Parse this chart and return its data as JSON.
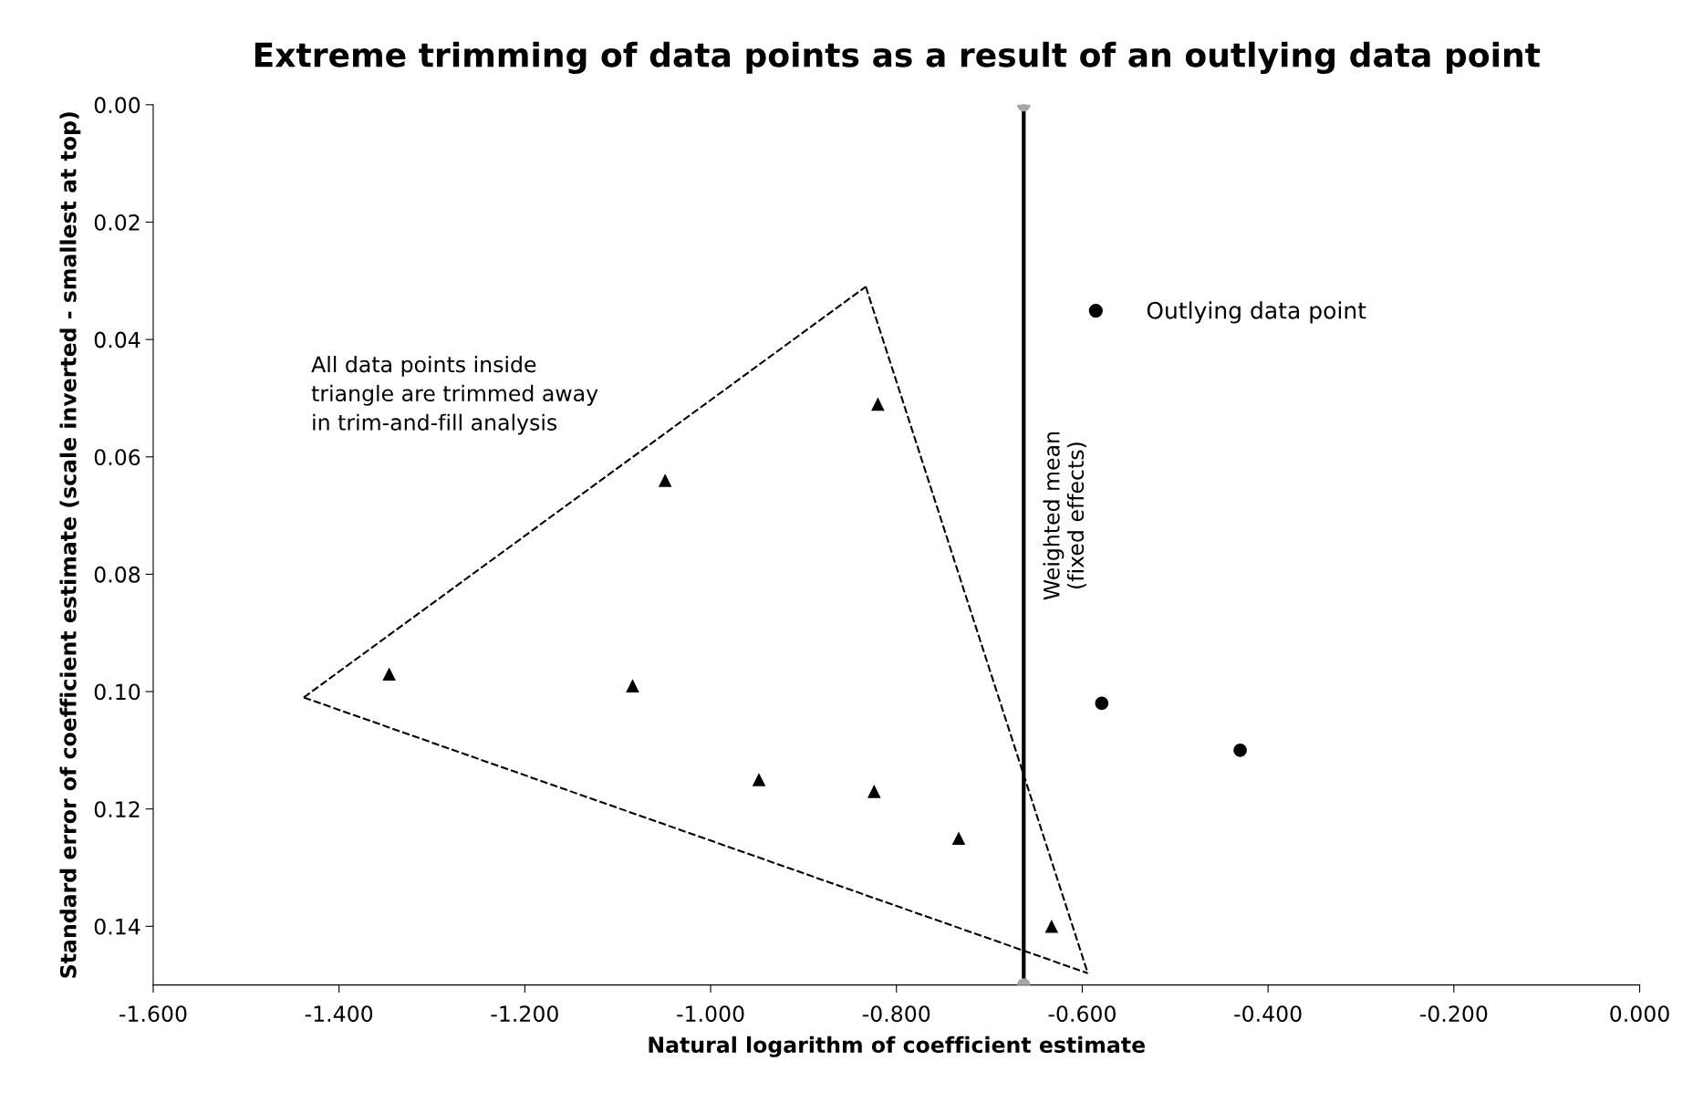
{
  "chart_data": {
    "type": "scatter",
    "title": "Extreme trimming of data points as a result of an outlying data point",
    "xlabel": "Natural logarithm of coefficient estimate",
    "ylabel": "Standard error of coefficient estimate (scale inverted - smallest at top)",
    "xlim": [
      -1.6,
      0.0
    ],
    "xticks": [
      {
        "value": -1.6,
        "label": "-1.600"
      },
      {
        "value": -1.4,
        "label": "-1.400"
      },
      {
        "value": -1.2,
        "label": "-1.200"
      },
      {
        "value": -1.0,
        "label": "-1.000"
      },
      {
        "value": -0.8,
        "label": "-0.800"
      },
      {
        "value": -0.6,
        "label": "-0.600"
      },
      {
        "value": -0.4,
        "label": "-0.400"
      },
      {
        "value": -0.2,
        "label": "-0.200"
      },
      {
        "value": 0.0,
        "label": "0.000"
      }
    ],
    "ylim": [
      0.15,
      0.0
    ],
    "yticks": [
      {
        "value": 0.0,
        "label": "0.00"
      },
      {
        "value": 0.02,
        "label": "0.02"
      },
      {
        "value": 0.04,
        "label": "0.04"
      },
      {
        "value": 0.06,
        "label": "0.06"
      },
      {
        "value": 0.08,
        "label": "0.08"
      },
      {
        "value": 0.1,
        "label": "0.10"
      },
      {
        "value": 0.12,
        "label": "0.12"
      },
      {
        "value": 0.14,
        "label": "0.14"
      }
    ],
    "grid": false,
    "legend": "top right",
    "series": [
      {
        "type": "scatter",
        "marker": "triangle",
        "color": "#000000",
        "x": [
          -1.346,
          -1.084,
          -1.049,
          -0.82,
          -0.948,
          -0.824,
          -0.733,
          -0.633
        ],
        "values": [
          0.097,
          0.099,
          0.064,
          0.051,
          0.115,
          0.117,
          0.125,
          0.14
        ]
      },
      {
        "type": "scatter",
        "marker": "circle",
        "color": "#000000",
        "name": "Outlying data point",
        "x": [
          -0.579,
          -0.43
        ],
        "values": [
          0.102,
          0.11
        ]
      },
      {
        "type": "line",
        "marker": "none",
        "line_style": "dashed",
        "color": "#000000",
        "x": [
          -1.438,
          -0.833
        ],
        "values": [
          0.101,
          0.031
        ]
      },
      {
        "type": "line",
        "marker": "none",
        "line_style": "dashed",
        "color": "#000000",
        "x": [
          -0.833,
          -0.594
        ],
        "values": [
          0.031,
          0.148
        ]
      },
      {
        "type": "line",
        "marker": "none",
        "line_style": "dashed",
        "color": "#000000",
        "x": [
          -1.438,
          -0.594
        ],
        "values": [
          0.101,
          0.148
        ]
      },
      {
        "type": "scatter",
        "marker": "circle",
        "color": "#a6a6a6",
        "x": [
          -0.663,
          -0.663
        ],
        "values": [
          0.0,
          0.15
        ]
      }
    ],
    "ref_lines": [
      {
        "axis": "x",
        "value": -0.663,
        "label": "Weighted mean\n(fixed effects)",
        "color": "#000000",
        "line_style": "solid"
      }
    ],
    "annotations": [
      "All data points inside\ntriangle are trimmed away\nin trim-and-fill analysis"
    ]
  }
}
